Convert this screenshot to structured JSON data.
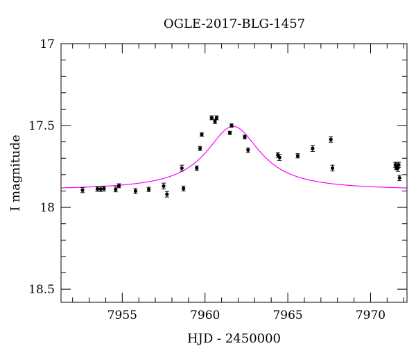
{
  "chart_data": {
    "type": "scatter",
    "title": "OGLE-2017-BLG-1457",
    "xlabel": "HJD - 2450000",
    "ylabel": "I magnitude",
    "xlim": [
      7951.3,
      7972.2
    ],
    "ylim": [
      17.0,
      18.58
    ],
    "y_inverted": true,
    "grid": false,
    "x_major_ticks": [
      7955,
      7960,
      7965,
      7970
    ],
    "x_minor_step": 1,
    "y_major_ticks": [
      17,
      17.5,
      18,
      18.5
    ],
    "y_tick_labels": [
      "17",
      "17.5",
      "18",
      "18.5"
    ],
    "y_minor_step": 0.1,
    "colors": {
      "points": "#000000",
      "model": "#ff00ff",
      "frame": "#000000"
    },
    "model": {
      "name": "",
      "baseline_mag": 17.895,
      "peak_mag": 17.505,
      "t0": 7961.7,
      "half_width": 2.0
    },
    "series": [
      {
        "name": "",
        "points": [
          {
            "x": 7952.6,
            "y": 17.895,
            "err": 0.015
          },
          {
            "x": 7953.5,
            "y": 17.887,
            "err": 0.015
          },
          {
            "x": 7953.7,
            "y": 17.888,
            "err": 0.015
          },
          {
            "x": 7953.9,
            "y": 17.885,
            "err": 0.015
          },
          {
            "x": 7954.6,
            "y": 17.89,
            "err": 0.015
          },
          {
            "x": 7954.8,
            "y": 17.868,
            "err": 0.012
          },
          {
            "x": 7955.8,
            "y": 17.9,
            "err": 0.015
          },
          {
            "x": 7956.6,
            "y": 17.89,
            "err": 0.013
          },
          {
            "x": 7957.5,
            "y": 17.87,
            "err": 0.018
          },
          {
            "x": 7957.7,
            "y": 17.92,
            "err": 0.017
          },
          {
            "x": 7958.6,
            "y": 17.76,
            "err": 0.018
          },
          {
            "x": 7958.7,
            "y": 17.885,
            "err": 0.015
          },
          {
            "x": 7959.5,
            "y": 17.76,
            "err": 0.013
          },
          {
            "x": 7959.7,
            "y": 17.64,
            "err": 0.012
          },
          {
            "x": 7959.8,
            "y": 17.555,
            "err": 0.01
          },
          {
            "x": 7960.4,
            "y": 17.453,
            "err": 0.012
          },
          {
            "x": 7960.6,
            "y": 17.475,
            "err": 0.013
          },
          {
            "x": 7960.7,
            "y": 17.453,
            "err": 0.012
          },
          {
            "x": 7961.5,
            "y": 17.545,
            "err": 0.01
          },
          {
            "x": 7961.6,
            "y": 17.5,
            "err": 0.01
          },
          {
            "x": 7962.4,
            "y": 17.57,
            "err": 0.011
          },
          {
            "x": 7962.6,
            "y": 17.65,
            "err": 0.013
          },
          {
            "x": 7964.4,
            "y": 17.68,
            "err": 0.015
          },
          {
            "x": 7964.5,
            "y": 17.695,
            "err": 0.018
          },
          {
            "x": 7965.6,
            "y": 17.685,
            "err": 0.013
          },
          {
            "x": 7966.5,
            "y": 17.64,
            "err": 0.018
          },
          {
            "x": 7967.6,
            "y": 17.585,
            "err": 0.017
          },
          {
            "x": 7967.7,
            "y": 17.76,
            "err": 0.018
          },
          {
            "x": 7971.5,
            "y": 17.74,
            "err": 0.015
          },
          {
            "x": 7971.55,
            "y": 17.755,
            "err": 0.015
          },
          {
            "x": 7971.6,
            "y": 17.745,
            "err": 0.02
          },
          {
            "x": 7971.65,
            "y": 17.76,
            "err": 0.02
          },
          {
            "x": 7971.7,
            "y": 17.74,
            "err": 0.015
          },
          {
            "x": 7971.75,
            "y": 17.82,
            "err": 0.017
          }
        ]
      }
    ]
  }
}
